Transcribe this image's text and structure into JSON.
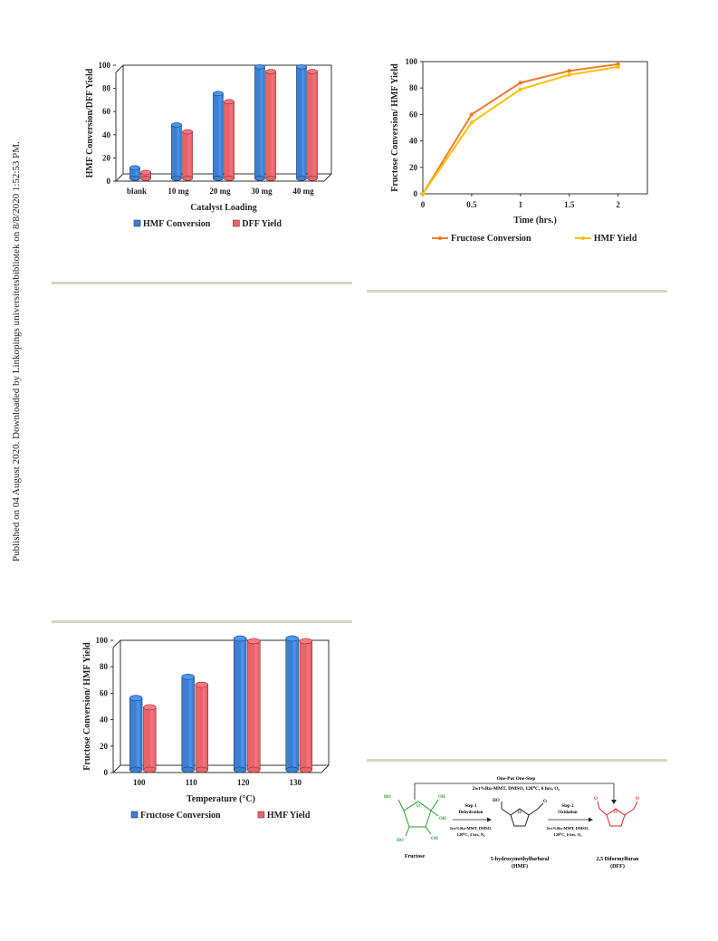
{
  "sidebar_text": "Published on 04 August 2020. Downloaded by Linkopings universitetsbibliotek on 8/8/2020 1:52:53 PM.",
  "chart_data": [
    {
      "type": "bar",
      "categories": [
        "blank",
        "10 mg",
        "20 mg",
        "30 mg",
        "40 mg"
      ],
      "series": [
        {
          "name": "HMF Conversion",
          "values": [
            10,
            47,
            74,
            97,
            97
          ]
        },
        {
          "name": "DFF Yield",
          "values": [
            6,
            41,
            67,
            93,
            93
          ]
        }
      ],
      "xlabel": "Catalyst Loading",
      "ylabel": "HMF Conversion/DFF Yield",
      "ylim": [
        0,
        100
      ],
      "yticks": [
        0,
        20,
        40,
        60,
        80,
        100
      ],
      "legend": "bottom",
      "colors": [
        "#3d7fd0",
        "#e8636a"
      ]
    },
    {
      "type": "line",
      "x": [
        0,
        0.5,
        1,
        1.5,
        2
      ],
      "xticks": [
        "0",
        "0.5",
        "1",
        "1.5",
        "2"
      ],
      "series": [
        {
          "name": "Fructose Conversion",
          "values": [
            0,
            60,
            84,
            93,
            98
          ]
        },
        {
          "name": "HMF Yield",
          "values": [
            0,
            54,
            79,
            90,
            96
          ]
        }
      ],
      "xlabel": "Time (hrs.)",
      "ylabel": "Fructose Conversion/ HMF Yield",
      "xlim": [
        0,
        2.3
      ],
      "ylim": [
        0,
        100
      ],
      "yticks": [
        0,
        20,
        40,
        60,
        80,
        100
      ],
      "legend": "bottom",
      "colors": [
        "#ed7d31",
        "#ffc000"
      ]
    },
    {
      "type": "bar",
      "categories": [
        "100",
        "110",
        "120",
        "130"
      ],
      "series": [
        {
          "name": "Fructose Conversion",
          "values": [
            55,
            71,
            100,
            100
          ]
        },
        {
          "name": "HMF Yield",
          "values": [
            48,
            65,
            98,
            98
          ]
        }
      ],
      "xlabel": "Temperature (°C)",
      "ylabel": "Fructose Conversion/ HMF Yield",
      "ylim": [
        0,
        100
      ],
      "yticks": [
        0,
        20,
        40,
        60,
        80,
        100
      ],
      "legend": "bottom",
      "colors": [
        "#3d7fd0",
        "#e8636a"
      ]
    }
  ],
  "scheme": {
    "top_title": "One-Pot One-Step",
    "top_conditions": "2wt%Ru-MMT, DMSO, 120⁰C, 6 hrs, O₂",
    "step1_title": "Step 1",
    "step1_name": "Dehydration",
    "step1_cond1": "2wt%Ru-MMT, DMSO,",
    "step1_cond2": "120⁰C, 2 hrs, N₂",
    "step2_title": "Step 2",
    "step2_name": "Oxidation",
    "step2_cond1": "2wt%Ru-MMT, DMSO,",
    "step2_cond2": "120⁰C, 6 hrs, O₂",
    "fructose_label": "Fructose",
    "hmf_label1": "5-hydroxymethylfurfural",
    "hmf_label2": "(HMF)",
    "dff_label1": "2,5 Diformylfuran",
    "dff_label2": "(DFF)",
    "atom_ho": "HO",
    "atom_oh": "OH",
    "atom_o": "O",
    "fructose_color": "#2a9d2a",
    "dff_color": "#e02020"
  }
}
